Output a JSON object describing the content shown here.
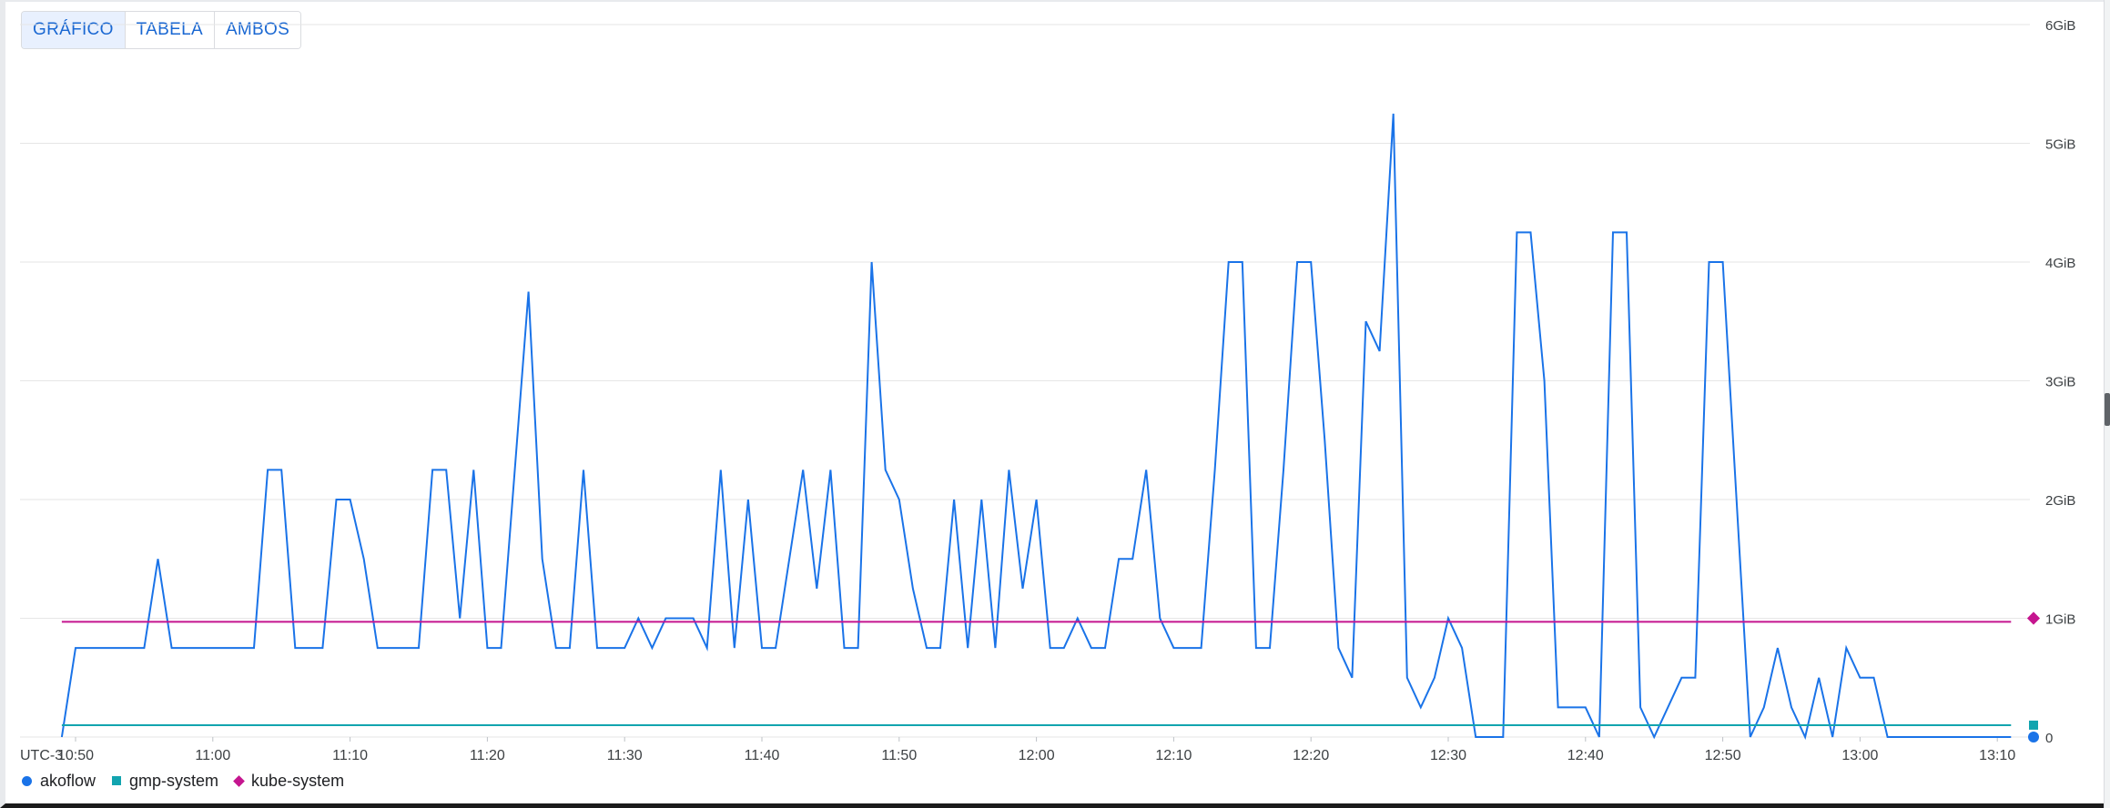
{
  "view_toggle": {
    "options": [
      "GRÁFICO",
      "TABELA",
      "AMBOS"
    ],
    "active": 0
  },
  "chart_data": {
    "type": "line",
    "timezone_label": "UTC-3",
    "x_unit": "time",
    "x_ticks": [
      "10:50",
      "11:00",
      "11:10",
      "11:20",
      "11:30",
      "11:40",
      "11:50",
      "12:00",
      "12:10",
      "12:20",
      "12:30",
      "12:40",
      "12:50",
      "13:00",
      "13:10"
    ],
    "y_ticks": [
      "0",
      "1GiB",
      "2GiB",
      "3GiB",
      "4GiB",
      "5GiB",
      "6GiB"
    ],
    "ylim": [
      0,
      6
    ],
    "xlim": [
      "10:49",
      "13:11"
    ],
    "grid": true,
    "legend_position": "bottom-left",
    "series": [
      {
        "name": "akoflow",
        "color": "#1a73e8",
        "marker": "circle",
        "last_value": 0,
        "points": [
          [
            "10:49",
            0
          ],
          [
            "10:50",
            0.75
          ],
          [
            "10:55",
            0.75
          ],
          [
            "10:56",
            1.5
          ],
          [
            "10:57",
            0.75
          ],
          [
            "11:03",
            0.75
          ],
          [
            "11:04",
            2.25
          ],
          [
            "11:05",
            2.25
          ],
          [
            "11:06",
            0.75
          ],
          [
            "11:08",
            0.75
          ],
          [
            "11:09",
            2.0
          ],
          [
            "11:10",
            2.0
          ],
          [
            "11:11",
            1.5
          ],
          [
            "11:12",
            0.75
          ],
          [
            "11:15",
            0.75
          ],
          [
            "11:16",
            2.25
          ],
          [
            "11:17",
            2.25
          ],
          [
            "11:18",
            1.0
          ],
          [
            "11:19",
            2.25
          ],
          [
            "11:20",
            0.75
          ],
          [
            "11:21",
            0.75
          ],
          [
            "11:23",
            3.75
          ],
          [
            "11:24",
            1.5
          ],
          [
            "11:25",
            0.75
          ],
          [
            "11:26",
            0.75
          ],
          [
            "11:27",
            2.25
          ],
          [
            "11:28",
            0.75
          ],
          [
            "11:30",
            0.75
          ],
          [
            "11:31",
            1.0
          ],
          [
            "11:32",
            0.75
          ],
          [
            "11:33",
            1.0
          ],
          [
            "11:35",
            1.0
          ],
          [
            "11:36",
            0.75
          ],
          [
            "11:37",
            2.25
          ],
          [
            "11:38",
            0.75
          ],
          [
            "11:39",
            2.0
          ],
          [
            "11:40",
            0.75
          ],
          [
            "11:41",
            0.75
          ],
          [
            "11:43",
            2.25
          ],
          [
            "11:44",
            1.25
          ],
          [
            "11:45",
            2.25
          ],
          [
            "11:46",
            0.75
          ],
          [
            "11:47",
            0.75
          ],
          [
            "11:48",
            4.0
          ],
          [
            "11:49",
            2.25
          ],
          [
            "11:50",
            2.0
          ],
          [
            "11:51",
            1.25
          ],
          [
            "11:52",
            0.75
          ],
          [
            "11:53",
            0.75
          ],
          [
            "11:54",
            2.0
          ],
          [
            "11:55",
            0.75
          ],
          [
            "11:56",
            2.0
          ],
          [
            "11:57",
            0.75
          ],
          [
            "11:58",
            2.25
          ],
          [
            "11:59",
            1.25
          ],
          [
            "12:00",
            2.0
          ],
          [
            "12:01",
            0.75
          ],
          [
            "12:02",
            0.75
          ],
          [
            "12:03",
            1.0
          ],
          [
            "12:04",
            0.75
          ],
          [
            "12:05",
            0.75
          ],
          [
            "12:06",
            1.5
          ],
          [
            "12:07",
            1.5
          ],
          [
            "12:08",
            2.25
          ],
          [
            "12:09",
            1.0
          ],
          [
            "12:10",
            0.75
          ],
          [
            "12:12",
            0.75
          ],
          [
            "12:13",
            2.25
          ],
          [
            "12:14",
            4.0
          ],
          [
            "12:15",
            4.0
          ],
          [
            "12:16",
            0.75
          ],
          [
            "12:17",
            0.75
          ],
          [
            "12:18",
            2.25
          ],
          [
            "12:19",
            4.0
          ],
          [
            "12:20",
            4.0
          ],
          [
            "12:21",
            2.5
          ],
          [
            "12:22",
            0.75
          ],
          [
            "12:23",
            0.5
          ],
          [
            "12:24",
            3.5
          ],
          [
            "12:25",
            3.25
          ],
          [
            "12:26",
            5.25
          ],
          [
            "12:27",
            0.5
          ],
          [
            "12:28",
            0.25
          ],
          [
            "12:29",
            0.5
          ],
          [
            "12:30",
            1.0
          ],
          [
            "12:31",
            0.75
          ],
          [
            "12:32",
            0
          ],
          [
            "12:34",
            0
          ],
          [
            "12:35",
            4.25
          ],
          [
            "12:36",
            4.25
          ],
          [
            "12:37",
            3.0
          ],
          [
            "12:38",
            0.25
          ],
          [
            "12:40",
            0.25
          ],
          [
            "12:41",
            0
          ],
          [
            "12:42",
            4.25
          ],
          [
            "12:43",
            4.25
          ],
          [
            "12:44",
            0.25
          ],
          [
            "12:45",
            0
          ],
          [
            "12:47",
            0.5
          ],
          [
            "12:48",
            0.5
          ],
          [
            "12:49",
            4.0
          ],
          [
            "12:50",
            4.0
          ],
          [
            "12:51",
            2.0
          ],
          [
            "12:52",
            0
          ],
          [
            "12:53",
            0.25
          ],
          [
            "12:54",
            0.75
          ],
          [
            "12:55",
            0.25
          ],
          [
            "12:56",
            0
          ],
          [
            "12:57",
            0.5
          ],
          [
            "12:58",
            0
          ],
          [
            "12:59",
            0.75
          ],
          [
            "13:00",
            0.5
          ],
          [
            "13:01",
            0.5
          ],
          [
            "13:02",
            0
          ],
          [
            "13:11",
            0
          ]
        ]
      },
      {
        "name": "gmp-system",
        "color": "#12a4af",
        "marker": "square",
        "last_value": 0.1,
        "points": [
          [
            "10:49",
            0.1
          ],
          [
            "13:11",
            0.1
          ]
        ]
      },
      {
        "name": "kube-system",
        "color": "#c5158f",
        "marker": "diamond",
        "last_value": 1.0,
        "points": [
          [
            "10:49",
            0.97
          ],
          [
            "13:11",
            0.97
          ]
        ]
      }
    ]
  }
}
